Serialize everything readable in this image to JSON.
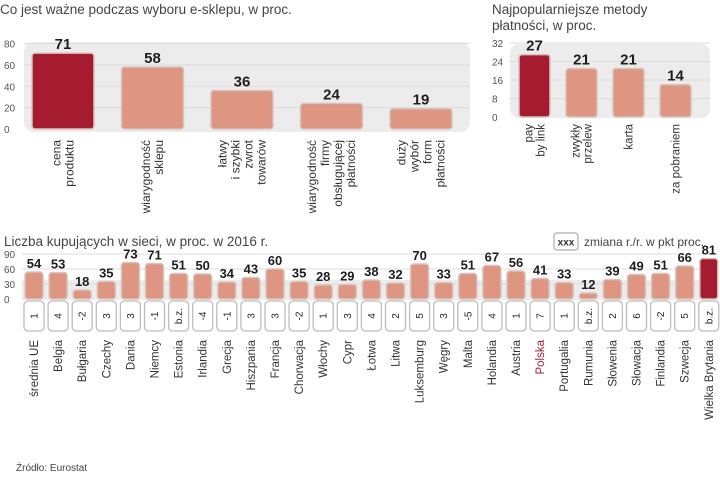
{
  "colors": {
    "highlight": "#a51c30",
    "bar": "#de9582",
    "bar_border": "#d9c3bd",
    "panel_bg": "#ececec",
    "grid": "#dcdcdc",
    "change_box_bg": "#ffffff",
    "change_box_border": "#bdbdbd",
    "polska_label": "#a51c30"
  },
  "source": "Źródło: Eurostat",
  "legend": {
    "box_text": "xxx",
    "label": "zmiana r./r. w pkt proc."
  },
  "chart_data": [
    {
      "id": "eshop-factors",
      "type": "bar",
      "title": "Co jest ważne podczas wyboru e-sklepu, w proc.",
      "xlabel": "",
      "ylabel": "",
      "ylim": [
        0,
        80
      ],
      "yticks": [
        "0",
        "20",
        "40",
        "60",
        "80"
      ],
      "grid": true,
      "categories": [
        [
          "cena",
          "produktu"
        ],
        [
          "wiarygodność",
          "sklepu"
        ],
        [
          "łatwy",
          "i szybki",
          "zwrot",
          "towarów"
        ],
        [
          "wiarygodność",
          "firmy",
          "obsługującej",
          "płatności"
        ],
        [
          "duży",
          "wybór",
          "form",
          "płatności"
        ]
      ],
      "values": [
        71,
        58,
        36,
        24,
        19
      ],
      "highlight_index": [
        0
      ]
    },
    {
      "id": "payment-methods",
      "type": "bar",
      "title": [
        "Najpopularniejsze metody",
        "płatności, w proc."
      ],
      "xlabel": "",
      "ylabel": "",
      "ylim": [
        0,
        32
      ],
      "yticks": [
        "0",
        "8",
        "16",
        "24",
        "32"
      ],
      "grid": true,
      "categories": [
        [
          "pay",
          "by link"
        ],
        [
          "zwykły",
          "przelew"
        ],
        [
          "karta"
        ],
        [
          "za pobraniem"
        ]
      ],
      "values": [
        27,
        21,
        21,
        14
      ],
      "highlight_index": [
        0
      ]
    },
    {
      "id": "online-shoppers",
      "type": "bar",
      "title": "Liczba kupujących w sieci, w proc. w 2016 r.",
      "xlabel": "",
      "ylabel": "",
      "ylim": [
        0,
        90
      ],
      "yticks": [
        "0",
        "30",
        "60",
        "90"
      ],
      "grid": true,
      "categories": [
        "średnia UE",
        "Belgia",
        "Bułgaria",
        "Czechy",
        "Dania",
        "Niemcy",
        "Estonia",
        "Irlandia",
        "Grecja",
        "Hiszpania",
        "Francja",
        "Chorwacja",
        "Włochy",
        "Cypr",
        "Łotwa",
        "Litwa",
        "Luksemburg",
        "Węgry",
        "Malta",
        "Holandia",
        "Austria",
        "Polska",
        "Portugalia",
        "Rumunia",
        "Słowenia",
        "Słowacja",
        "Finlandia",
        "Szwecja",
        "Wielka Brytania"
      ],
      "values": [
        54,
        53,
        18,
        35,
        73,
        71,
        51,
        50,
        34,
        43,
        60,
        35,
        28,
        29,
        38,
        32,
        70,
        33,
        51,
        67,
        56,
        41,
        33,
        12,
        39,
        49,
        51,
        66,
        81
      ],
      "change_yoy": [
        "1",
        "4",
        "-2",
        "3",
        "3",
        "-1",
        "b.z.",
        "-4",
        "-1",
        "3",
        "3",
        "-2",
        "1",
        "3",
        "4",
        "2",
        "5",
        "3",
        "-5",
        "4",
        "1",
        "7",
        "1",
        "b.z.",
        "2",
        "6",
        "-2",
        "5",
        "b.z."
      ],
      "highlight_index": [
        28
      ],
      "label_highlight_index": [
        21
      ],
      "legend": "top-right"
    }
  ]
}
